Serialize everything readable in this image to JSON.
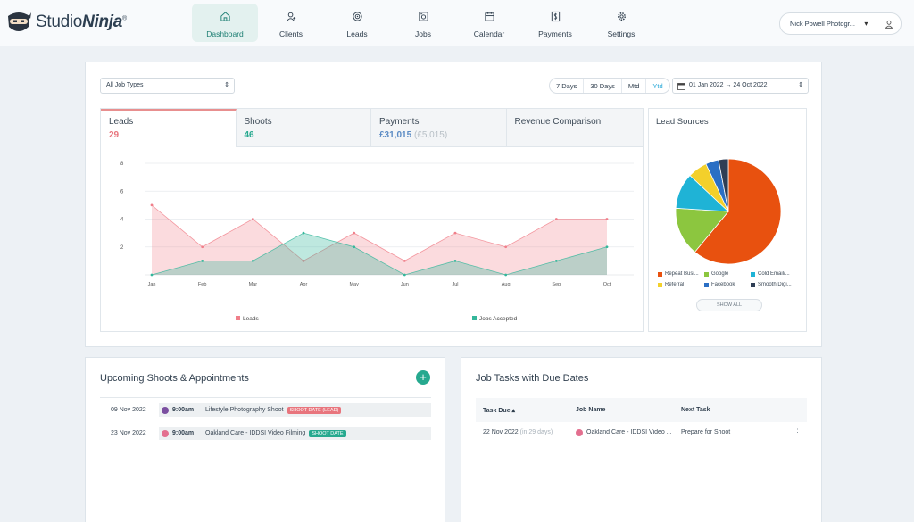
{
  "header": {
    "logo_plain": "Studio",
    "logo_bold": "Ninja",
    "logo_tm": "®",
    "nav": [
      {
        "label": "Dashboard",
        "icon": "home-icon",
        "active": true
      },
      {
        "label": "Clients",
        "icon": "clients-icon",
        "active": false
      },
      {
        "label": "Leads",
        "icon": "target-icon",
        "active": false
      },
      {
        "label": "Jobs",
        "icon": "camera-icon",
        "active": false
      },
      {
        "label": "Calendar",
        "icon": "calendar-icon",
        "active": false
      },
      {
        "label": "Payments",
        "icon": "dollar-icon",
        "active": false
      },
      {
        "label": "Settings",
        "icon": "gear-icon",
        "active": false
      }
    ],
    "user_name": "Nick Powell Photogr...",
    "user_chevron": "▾"
  },
  "filters": {
    "job_type": "All Job Types",
    "ranges": [
      "7 Days",
      "30 Days",
      "Mtd",
      "Ytd"
    ],
    "active_range": "Ytd",
    "date_range": "01 Jan 2022 → 24 Oct 2022"
  },
  "tabs": [
    {
      "title": "Leads",
      "value": "29",
      "extra": ""
    },
    {
      "title": "Shoots",
      "value": "46",
      "extra": ""
    },
    {
      "title": "Payments",
      "value": "£31,015",
      "extra": "(£5,015)"
    },
    {
      "title": "Revenue Comparison",
      "value": "",
      "extra": ""
    }
  ],
  "chart_data": {
    "type": "area",
    "x": [
      "Jan",
      "Feb",
      "Mar",
      "Apr",
      "May",
      "Jun",
      "Jul",
      "Aug",
      "Sep",
      "Oct"
    ],
    "yticks": [
      2,
      4,
      6,
      8
    ],
    "ylim": [
      0,
      8
    ],
    "grid": true,
    "legend_position": "bottom",
    "series": [
      {
        "name": "Leads",
        "values": [
          5,
          2,
          4,
          1,
          3,
          1,
          3,
          2,
          4,
          4
        ],
        "color": "#f07f8a"
      },
      {
        "name": "Jobs Accepted",
        "values": [
          0,
          1,
          1,
          3,
          2,
          0,
          1,
          0,
          1,
          2
        ],
        "color": "#35b79b"
      }
    ]
  },
  "lead_sources": {
    "title": "Lead Sources",
    "show_all": "SHOW ALL",
    "chart_data": {
      "type": "pie",
      "labels": [
        "Repeat Busi...",
        "Google",
        "Cold Email/...",
        "Referral",
        "Facebook",
        "Smooth Digi..."
      ],
      "values": [
        61,
        15,
        11,
        6,
        4,
        3
      ],
      "colors": [
        "#e8510f",
        "#8cc63f",
        "#1fb3d6",
        "#f3d02b",
        "#2b6fc4",
        "#2f3e55"
      ]
    }
  },
  "upcoming": {
    "title": "Upcoming Shoots & Appointments",
    "add_label": "+",
    "items": [
      {
        "date": "09 Nov 2022",
        "time": "9:00am",
        "name": "Lifestyle Photography Shoot",
        "badge": "SHOOT DATE (LEAD)",
        "badge_color": "#e8757d",
        "dot_color": "#7b4fa0"
      },
      {
        "date": "23 Nov 2022",
        "time": "9:00am",
        "name": "Oakland Care - IDDSI Video Filming",
        "badge": "SHOOT DATE",
        "badge_color": "#26a98f",
        "dot_color": "#e36f8f"
      }
    ]
  },
  "tasks": {
    "title": "Job Tasks with Due Dates",
    "columns": [
      "Task Due ▴",
      "Job Name",
      "Next Task"
    ],
    "rows": [
      {
        "due": "22 Nov 2022",
        "due_rel": "(in 29 days)",
        "job": "Oakland Care - IDDSI Video ...",
        "next": "Prepare for Shoot",
        "more": "⋮"
      }
    ]
  }
}
